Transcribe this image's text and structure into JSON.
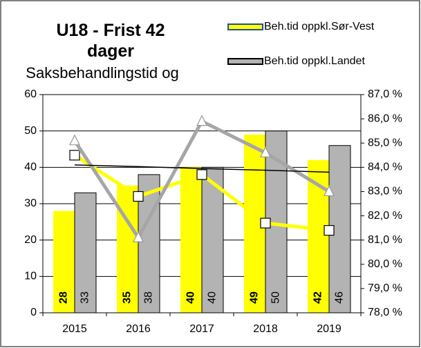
{
  "chart_data": {
    "type": "bar",
    "title": "U18 - Frist 42 dager",
    "subtitle": "Saksbehandlingstid og",
    "categories": [
      "2015",
      "2016",
      "2017",
      "2018",
      "2019"
    ],
    "series": [
      {
        "name": "Beh.tid oppkl.Sør-Vest",
        "color": "#ffff00",
        "values": [
          28,
          35,
          40,
          49,
          42
        ]
      },
      {
        "name": "Beh.tid oppkl.Landet",
        "color": "#b3b3b3",
        "values": [
          33,
          38,
          40,
          50,
          46
        ]
      },
      {
        "type": "line",
        "axis": "y2",
        "color": "#ffff00",
        "marker": "square",
        "values": [
          84.5,
          82.8,
          83.7,
          81.7,
          81.4
        ]
      },
      {
        "type": "line",
        "axis": "y2",
        "color": "#a6a6a6",
        "marker": "triangle",
        "values": [
          85.1,
          81.1,
          85.9,
          84.6,
          83.0
        ]
      },
      {
        "type": "line",
        "axis": "y2",
        "color": "#000000",
        "marker": "none",
        "values": [
          84.1,
          84.03,
          83.95,
          83.88,
          83.8
        ]
      }
    ],
    "ylim": [
      0,
      60
    ],
    "yticks": [
      0,
      10,
      20,
      30,
      40,
      50,
      60
    ],
    "y2lim": [
      78,
      87
    ],
    "y2ticks": [
      {
        "value": 78,
        "label": "78,0 %"
      },
      {
        "value": 79,
        "label": "79,0 %"
      },
      {
        "value": 80,
        "label": "80,0 %"
      },
      {
        "value": 81,
        "label": "81,0 %"
      },
      {
        "value": 82,
        "label": "82,0 %"
      },
      {
        "value": 83,
        "label": "83,0 %"
      },
      {
        "value": 84,
        "label": "84,0 %"
      },
      {
        "value": 85,
        "label": "85,0 %"
      },
      {
        "value": 86,
        "label": "86,0 %"
      },
      {
        "value": 87,
        "label": "87,0 %"
      }
    ],
    "grid": true
  }
}
